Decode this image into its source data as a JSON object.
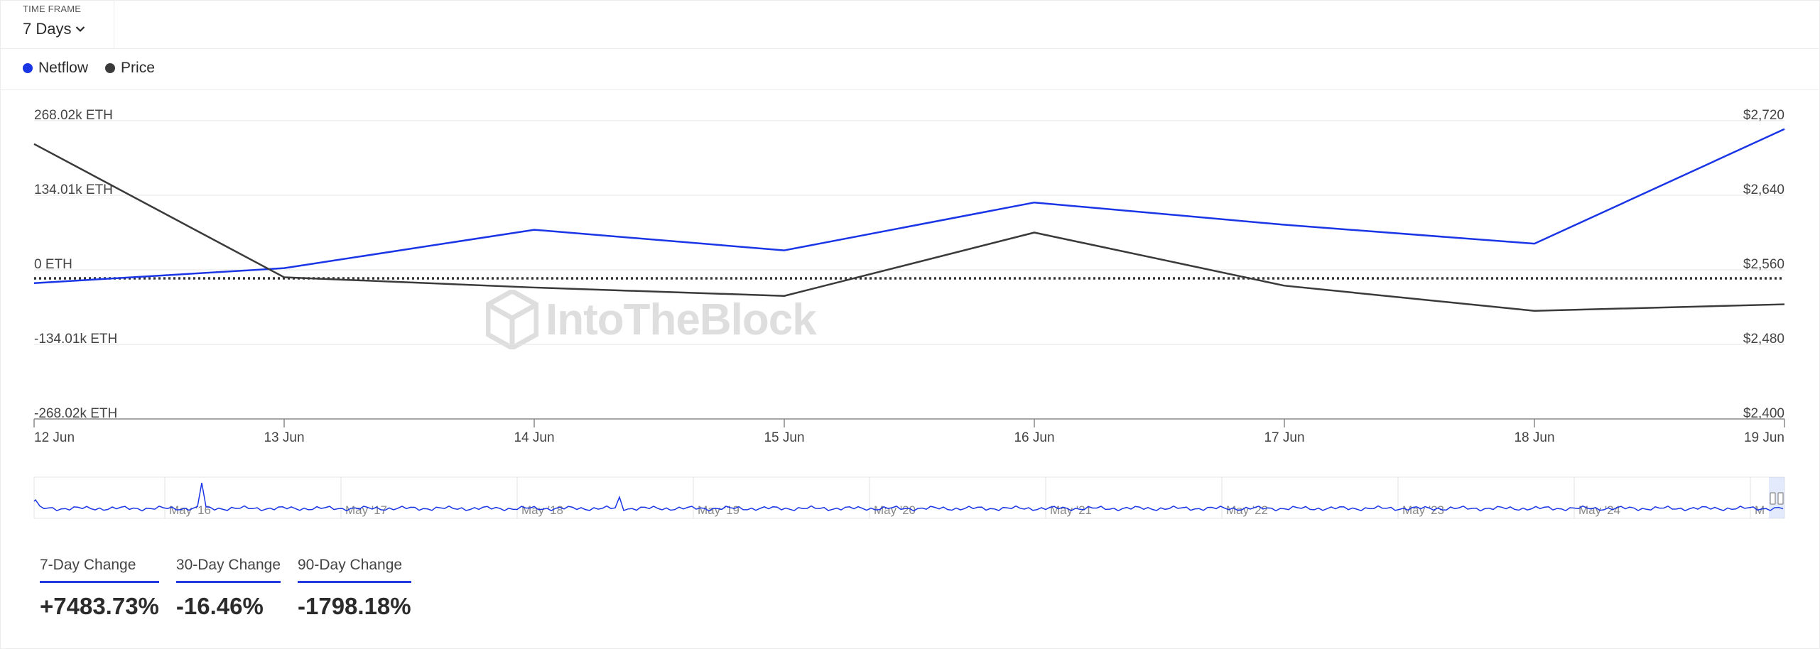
{
  "timeframe": {
    "label": "TIME FRAME",
    "value": "7 Days"
  },
  "legend": [
    {
      "name": "Netflow",
      "color": "#1a35e6"
    },
    {
      "name": "Price",
      "color": "#3a3a3a"
    }
  ],
  "watermark": "IntoTheBlock",
  "chart_data": {
    "type": "line",
    "x": [
      "12 Jun",
      "13 Jun",
      "14 Jun",
      "15 Jun",
      "16 Jun",
      "17 Jun",
      "18 Jun",
      "19 Jun"
    ],
    "series": [
      {
        "name": "Netflow",
        "axis": "left",
        "color": "#1a35e6",
        "values": [
          -24000,
          3000,
          72000,
          35000,
          121000,
          81000,
          47000,
          253000
        ]
      },
      {
        "name": "Price",
        "axis": "right",
        "color": "#3a3a3a",
        "values": [
          2695,
          2552,
          2541,
          2532,
          2600,
          2543,
          2516,
          2523
        ]
      }
    ],
    "left_axis": {
      "ticks": [
        "268.02k ETH",
        "134.01k ETH",
        "0 ETH",
        "-134.01k ETH",
        "-268.02k ETH"
      ],
      "ylim": [
        -268020,
        268020
      ]
    },
    "right_axis": {
      "ticks": [
        "$2,720",
        "$2,640",
        "$2,560",
        "$2,480",
        "$2,400"
      ],
      "ylim": [
        2400,
        2720
      ]
    },
    "zero_line": "dotted",
    "navigator": {
      "labels": [
        "May '16",
        "May '17",
        "May '18",
        "May '19",
        "May '20",
        "May '21",
        "May '22",
        "May '23",
        "May '24",
        "M"
      ]
    }
  },
  "changes": [
    {
      "label": "7-Day Change",
      "value": "+7483.73%"
    },
    {
      "label": "30-Day Change",
      "value": "-16.46%"
    },
    {
      "label": "90-Day Change",
      "value": "-1798.18%"
    }
  ]
}
